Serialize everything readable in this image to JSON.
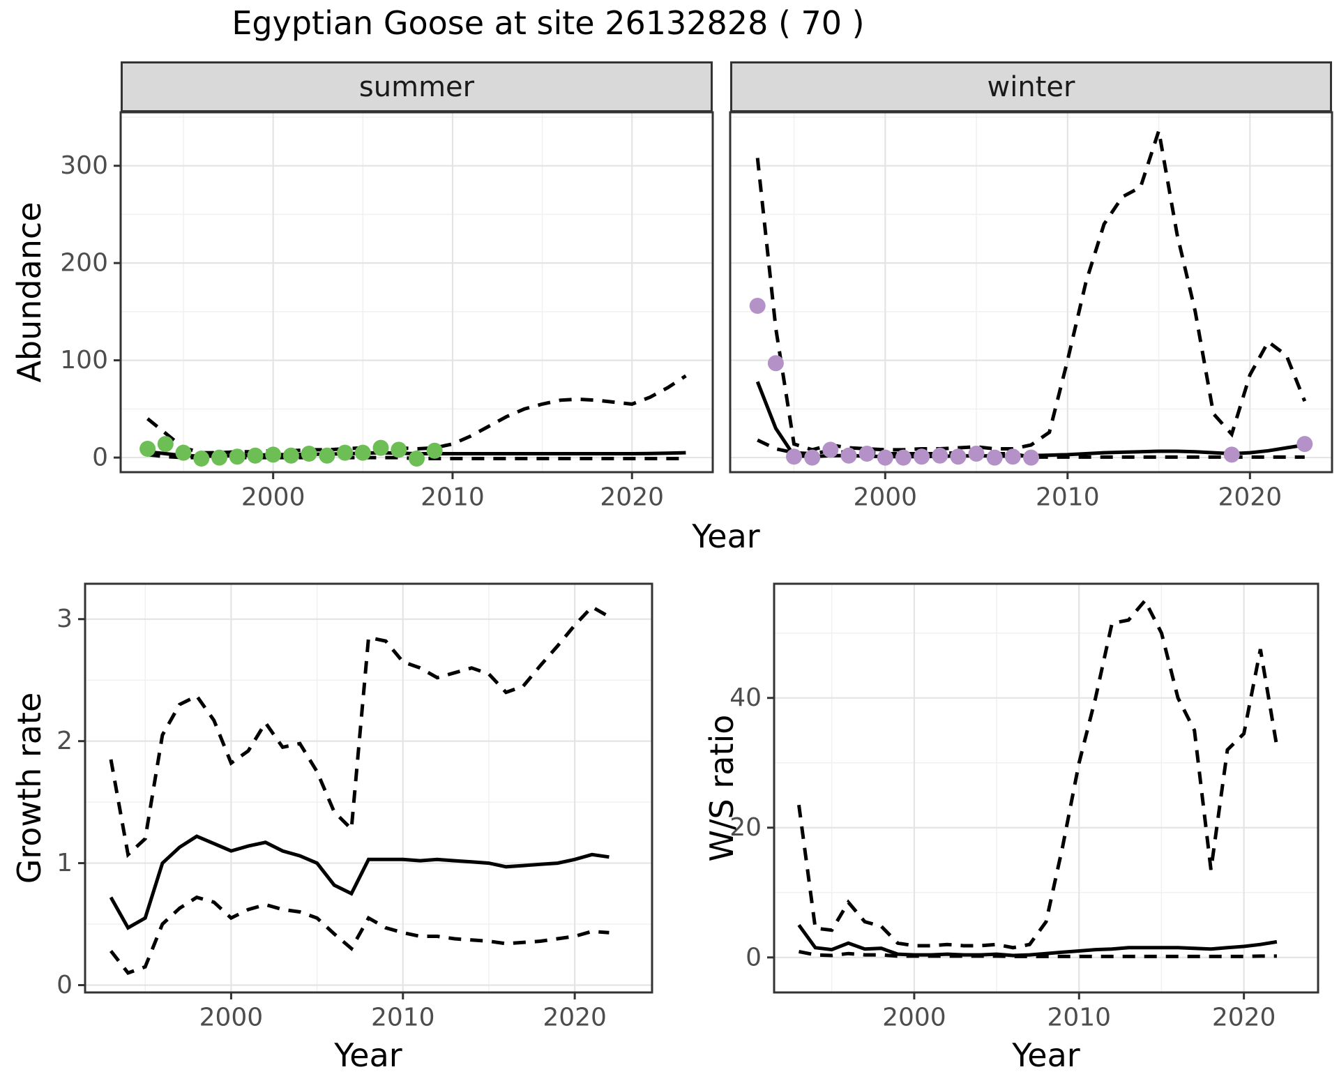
{
  "title": "Egyptian Goose at site 26132828 ( 70 )",
  "colors": {
    "summer_point": "#6CBE55",
    "winter_point": "#B492C8",
    "line": "#000000",
    "strip_bg": "#D9D9D9",
    "strip_text": "#1A1A1A",
    "axis_text": "#4D4D4D",
    "tick_mark": "#333333",
    "panel_border": "#333333",
    "grid_major": "#E4E4E4",
    "grid_minor": "#F0F0F0",
    "background": "#FFFFFF"
  },
  "labels": {
    "x": "Year",
    "abundance": "Abundance",
    "growth": "Growth rate",
    "ws": "W/S ratio",
    "facet_summer": "summer",
    "facet_winter": "winter"
  },
  "chart_data": [
    {
      "id": "summer",
      "type": "line",
      "title": "summer",
      "xlabel": "Year",
      "ylabel": "Abundance",
      "xlim": [
        1991.5,
        2024.5
      ],
      "ylim": [
        -15,
        355
      ],
      "xticks": [
        2000,
        2010,
        2020
      ],
      "xticks_minor": [
        1995,
        2005,
        2015
      ],
      "yticks": [
        0,
        100,
        200,
        300
      ],
      "yticks_minor": [
        50,
        150,
        250,
        350
      ],
      "series": [
        {
          "name": "fit",
          "style": "solid",
          "x": [
            1993,
            1994,
            1995,
            1996,
            1997,
            1998,
            1999,
            2000,
            2001,
            2002,
            2003,
            2004,
            2005,
            2006,
            2007,
            2008,
            2009,
            2010,
            2011,
            2012,
            2013,
            2014,
            2015,
            2016,
            2017,
            2018,
            2019,
            2020,
            2021,
            2022,
            2023
          ],
          "y": [
            6,
            4,
            2,
            1.5,
            1.5,
            2,
            2.5,
            3,
            3,
            3.5,
            3.5,
            4,
            4.5,
            5,
            4.5,
            4,
            4,
            4,
            4,
            4,
            4,
            4,
            4,
            4,
            4,
            4,
            4,
            4,
            4.2,
            4.6,
            5
          ]
        },
        {
          "name": "upper_ci",
          "style": "dashed",
          "x": [
            1993,
            1994,
            1995,
            1996,
            1997,
            1998,
            1999,
            2000,
            2001,
            2002,
            2003,
            2004,
            2005,
            2006,
            2007,
            2008,
            2009,
            2010,
            2011,
            2012,
            2013,
            2014,
            2015,
            2016,
            2017,
            2018,
            2019,
            2020,
            2021,
            2022,
            2023
          ],
          "y": [
            40,
            25,
            10,
            5,
            5,
            6,
            6,
            7,
            7,
            8,
            8,
            9,
            10,
            11,
            10,
            9,
            10,
            14,
            22,
            32,
            42,
            50,
            55,
            59,
            60,
            59,
            57,
            55,
            62,
            72,
            84
          ]
        },
        {
          "name": "lower_ci",
          "style": "dashed",
          "x": [
            1993,
            1994,
            1995,
            1996,
            1997,
            1998,
            1999,
            2000,
            2001,
            2002,
            2003,
            2004,
            2005,
            2006,
            2007,
            2008,
            2009,
            2010,
            2011,
            2012,
            2013,
            2014,
            2015,
            2016,
            2017,
            2018,
            2019,
            2020,
            2021,
            2022,
            2023
          ],
          "y": [
            3,
            1,
            0,
            0,
            0,
            0,
            0,
            0,
            0,
            0,
            0,
            0,
            0,
            0,
            0,
            -1,
            -1,
            -1,
            -1,
            -1,
            -1,
            -1,
            -1,
            -1,
            -1,
            -1,
            -1,
            -1,
            -1,
            -1,
            -1
          ]
        }
      ],
      "points": {
        "name": "observed_counts",
        "color_key": "summer_point",
        "x": [
          1993,
          1994,
          1995,
          1996,
          1997,
          1998,
          1999,
          2000,
          2001,
          2002,
          2003,
          2004,
          2005,
          2006,
          2007,
          2008,
          2009
        ],
        "y": [
          9,
          14,
          5,
          -1,
          0,
          1,
          2,
          3,
          2,
          4,
          2,
          5,
          5,
          10,
          8,
          -1,
          7
        ]
      }
    },
    {
      "id": "winter",
      "type": "line",
      "title": "winter",
      "xlabel": "Year",
      "ylabel": "Abundance",
      "xlim": [
        1991.5,
        2024.5
      ],
      "ylim": [
        -15,
        355
      ],
      "xticks": [
        2000,
        2010,
        2020
      ],
      "xticks_minor": [
        1995,
        2005,
        2015
      ],
      "yticks": [
        0,
        100,
        200,
        300
      ],
      "yticks_minor": [
        50,
        150,
        250,
        350
      ],
      "series": [
        {
          "name": "fit",
          "style": "solid",
          "x": [
            1993,
            1994,
            1995,
            1996,
            1997,
            1998,
            1999,
            2000,
            2001,
            2002,
            2003,
            2004,
            2005,
            2006,
            2007,
            2008,
            2009,
            2010,
            2011,
            2012,
            2013,
            2014,
            2015,
            2016,
            2017,
            2018,
            2019,
            2020,
            2021,
            2022,
            2023
          ],
          "y": [
            78,
            30,
            2,
            1,
            2,
            2,
            1.5,
            1,
            1,
            1,
            1.5,
            1.5,
            2,
            1.5,
            1.5,
            2,
            2.5,
            3,
            4,
            5,
            5.5,
            6,
            6.5,
            6.5,
            6,
            5,
            4,
            5,
            7,
            10,
            13
          ]
        },
        {
          "name": "upper_ci",
          "style": "dashed",
          "x": [
            1993,
            1994,
            1995,
            1996,
            1997,
            1998,
            1999,
            2000,
            2001,
            2002,
            2003,
            2004,
            2005,
            2006,
            2007,
            2008,
            2009,
            2010,
            2011,
            2012,
            2013,
            2014,
            2015,
            2016,
            2017,
            2018,
            2019,
            2020,
            2021,
            2022,
            2023
          ],
          "y": [
            308,
            133,
            14,
            8,
            13,
            10,
            9,
            8,
            8,
            9,
            9,
            10,
            11,
            9,
            9,
            13,
            26,
            100,
            180,
            240,
            268,
            278,
            336,
            230,
            150,
            45,
            24,
            85,
            119,
            105,
            58
          ]
        },
        {
          "name": "lower_ci",
          "style": "dashed",
          "x": [
            1993,
            1994,
            1995,
            1996,
            1997,
            1998,
            1999,
            2000,
            2001,
            2002,
            2003,
            2004,
            2005,
            2006,
            2007,
            2008,
            2009,
            2010,
            2011,
            2012,
            2013,
            2014,
            2015,
            2016,
            2017,
            2018,
            2019,
            2020,
            2021,
            2022,
            2023
          ],
          "y": [
            18,
            9,
            5,
            4,
            7,
            5,
            5,
            4,
            4,
            4,
            4,
            5,
            5,
            4,
            4,
            0.5,
            0.5,
            0.5,
            0.5,
            0.5,
            0.5,
            0.5,
            0.5,
            0.5,
            0.5,
            0.5,
            0.5,
            0.5,
            0.5,
            0.5,
            0.5
          ]
        }
      ],
      "points": {
        "name": "observed_counts",
        "color_key": "winter_point",
        "x": [
          1993,
          1994,
          1995,
          1996,
          1997,
          1998,
          1999,
          2000,
          2001,
          2002,
          2003,
          2004,
          2005,
          2006,
          2007,
          2008,
          2019,
          2023
        ],
        "y": [
          156,
          97,
          1,
          0,
          8,
          2,
          4,
          0,
          0,
          1,
          2,
          1,
          4,
          0,
          1,
          0,
          3,
          14
        ]
      }
    },
    {
      "id": "growth",
      "type": "line",
      "title": "Growth rate",
      "xlabel": "Year",
      "ylabel": "Growth rate",
      "xlim": [
        1991.5,
        2024.5
      ],
      "ylim": [
        -0.06,
        3.29
      ],
      "xticks": [
        2000,
        2010,
        2020
      ],
      "xticks_minor": [
        1995,
        2005,
        2015
      ],
      "yticks": [
        0,
        1,
        2,
        3
      ],
      "yticks_minor": [
        0.5,
        1.5,
        2.5
      ],
      "series": [
        {
          "name": "fit",
          "style": "solid",
          "x": [
            1993,
            1994,
            1995,
            1996,
            1997,
            1998,
            1999,
            2000,
            2001,
            2002,
            2003,
            2004,
            2005,
            2006,
            2007,
            2008,
            2009,
            2010,
            2011,
            2012,
            2013,
            2014,
            2015,
            2016,
            2017,
            2018,
            2019,
            2020,
            2021,
            2022
          ],
          "y": [
            0.72,
            0.47,
            0.55,
            1.0,
            1.13,
            1.22,
            1.16,
            1.1,
            1.14,
            1.17,
            1.1,
            1.06,
            1.0,
            0.82,
            0.75,
            1.03,
            1.03,
            1.03,
            1.02,
            1.03,
            1.02,
            1.01,
            1.0,
            0.97,
            0.98,
            0.99,
            1.0,
            1.03,
            1.07,
            1.05
          ]
        },
        {
          "name": "upper_ci",
          "style": "dashed",
          "x": [
            1993,
            1994,
            1995,
            1996,
            1997,
            1998,
            1999,
            2000,
            2001,
            2002,
            2003,
            2004,
            2005,
            2006,
            2007,
            2008,
            2009,
            2010,
            2011,
            2012,
            2013,
            2014,
            2015,
            2016,
            2017,
            2018,
            2019,
            2020,
            2021,
            2022
          ],
          "y": [
            1.85,
            1.07,
            1.2,
            2.05,
            2.3,
            2.37,
            2.17,
            1.82,
            1.92,
            2.15,
            1.95,
            1.98,
            1.75,
            1.42,
            1.28,
            2.85,
            2.82,
            2.65,
            2.6,
            2.52,
            2.56,
            2.6,
            2.55,
            2.4,
            2.45,
            2.62,
            2.78,
            2.95,
            3.1,
            3.02
          ]
        },
        {
          "name": "lower_ci",
          "style": "dashed",
          "x": [
            1993,
            1994,
            1995,
            1996,
            1997,
            1998,
            1999,
            2000,
            2001,
            2002,
            2003,
            2004,
            2005,
            2006,
            2007,
            2008,
            2009,
            2010,
            2011,
            2012,
            2013,
            2014,
            2015,
            2016,
            2017,
            2018,
            2019,
            2020,
            2021,
            2022
          ],
          "y": [
            0.28,
            0.1,
            0.15,
            0.5,
            0.63,
            0.72,
            0.68,
            0.55,
            0.62,
            0.66,
            0.62,
            0.6,
            0.55,
            0.42,
            0.3,
            0.55,
            0.47,
            0.43,
            0.4,
            0.4,
            0.38,
            0.37,
            0.36,
            0.34,
            0.35,
            0.36,
            0.38,
            0.4,
            0.44,
            0.43
          ]
        }
      ]
    },
    {
      "id": "ws",
      "type": "line",
      "title": "W/S ratio",
      "xlabel": "Year",
      "ylabel": "W/S ratio",
      "xlim": [
        1991.5,
        2024.5
      ],
      "ylim": [
        -5.4,
        57.6
      ],
      "xticks": [
        2000,
        2010,
        2020
      ],
      "xticks_minor": [
        1995,
        2005,
        2015
      ],
      "yticks": [
        0,
        20,
        40
      ],
      "yticks_minor": [
        10,
        30,
        50
      ],
      "series": [
        {
          "name": "fit",
          "style": "solid",
          "x": [
            1993,
            1994,
            1995,
            1996,
            1997,
            1998,
            1999,
            2000,
            2001,
            2002,
            2003,
            2004,
            2005,
            2006,
            2007,
            2008,
            2009,
            2010,
            2011,
            2012,
            2013,
            2014,
            2015,
            2016,
            2017,
            2018,
            2019,
            2020,
            2021,
            2022
          ],
          "y": [
            5.0,
            1.5,
            1.2,
            2.2,
            1.3,
            1.4,
            0.5,
            0.4,
            0.4,
            0.5,
            0.4,
            0.4,
            0.5,
            0.3,
            0.4,
            0.6,
            0.8,
            1.0,
            1.2,
            1.3,
            1.5,
            1.5,
            1.5,
            1.5,
            1.4,
            1.3,
            1.5,
            1.7,
            2.0,
            2.4
          ]
        },
        {
          "name": "upper_ci",
          "style": "dashed",
          "x": [
            1993,
            1994,
            1995,
            1996,
            1997,
            1998,
            1999,
            2000,
            2001,
            2002,
            2003,
            2004,
            2005,
            2006,
            2007,
            2008,
            2009,
            2010,
            2011,
            2012,
            2013,
            2014,
            2015,
            2016,
            2017,
            2018,
            2019,
            2020,
            2021,
            2022
          ],
          "y": [
            23.5,
            4.5,
            4.2,
            8.5,
            5.5,
            4.8,
            2.2,
            1.8,
            1.8,
            2.0,
            1.8,
            1.8,
            2.0,
            1.5,
            2.0,
            5.5,
            17,
            30,
            40,
            51.5,
            52,
            55,
            50,
            40,
            35,
            13.5,
            32,
            34.5,
            47.5,
            32.5
          ]
        },
        {
          "name": "lower_ci",
          "style": "dashed",
          "x": [
            1993,
            1994,
            1995,
            1996,
            1997,
            1998,
            1999,
            2000,
            2001,
            2002,
            2003,
            2004,
            2005,
            2006,
            2007,
            2008,
            2009,
            2010,
            2011,
            2012,
            2013,
            2014,
            2015,
            2016,
            2017,
            2018,
            2019,
            2020,
            2021,
            2022
          ],
          "y": [
            0.9,
            0.4,
            0.3,
            0.6,
            0.4,
            0.4,
            0.2,
            0.2,
            0.2,
            0.2,
            0.2,
            0.2,
            0.2,
            0.15,
            0.15,
            0.15,
            0.15,
            0.15,
            0.15,
            0.15,
            0.15,
            0.15,
            0.15,
            0.15,
            0.15,
            0.15,
            0.15,
            0.15,
            0.2,
            0.2
          ]
        }
      ]
    }
  ]
}
